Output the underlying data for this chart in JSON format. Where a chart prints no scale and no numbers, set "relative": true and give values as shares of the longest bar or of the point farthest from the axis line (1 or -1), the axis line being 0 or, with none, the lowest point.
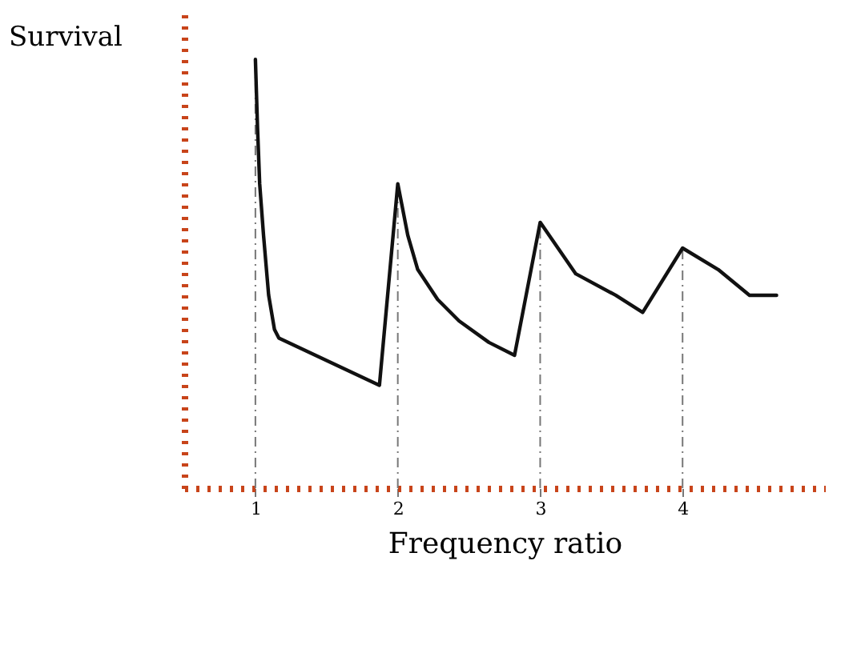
{
  "chart_data": {
    "type": "line",
    "relative": true,
    "xlabel": "Frequency ratio",
    "ylabel": "Survival",
    "xlim": [
      0.5,
      5
    ],
    "xticks": [
      1,
      2,
      3,
      4
    ],
    "grid": false,
    "marker": "none",
    "line_style": "solid",
    "series": [
      {
        "color": "#111111",
        "x": [
          1.0,
          1.015,
          1.03,
          1.057,
          1.093,
          1.134,
          1.165,
          1.871,
          2.0,
          2.07,
          2.14,
          2.28,
          2.43,
          2.64,
          2.82,
          3.0,
          3.25,
          3.53,
          3.72,
          4.0,
          4.25,
          4.47,
          4.66
        ],
        "values": [
          1.0,
          0.84,
          0.71,
          0.59,
          0.45,
          0.37,
          0.35,
          0.24,
          0.71,
          0.59,
          0.51,
          0.44,
          0.39,
          0.34,
          0.31,
          0.62,
          0.5,
          0.45,
          0.41,
          0.56,
          0.51,
          0.45,
          0.45
        ]
      }
    ],
    "ref_lines": [
      {
        "axis": "x",
        "value": 1,
        "color": "#777777",
        "line_style": "dashdot"
      },
      {
        "axis": "x",
        "value": 2,
        "color": "#777777",
        "line_style": "dashdot"
      },
      {
        "axis": "x",
        "value": 3,
        "color": "#777777",
        "line_style": "dashdot"
      },
      {
        "axis": "x",
        "value": 4,
        "color": "#777777",
        "line_style": "dashdot"
      }
    ]
  }
}
